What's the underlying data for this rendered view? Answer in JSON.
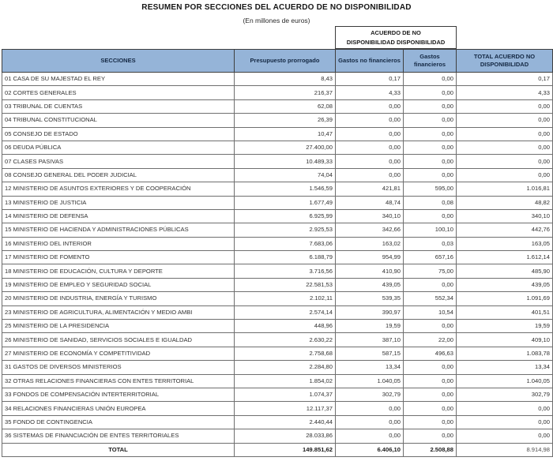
{
  "title": "RESUMEN POR SECCIONES DEL ACUERDO DE NO DISPONIBILIDAD",
  "subtitle": "(En millones de euros)",
  "group_header": {
    "line1": "ACUERDO DE NO",
    "line2": "DISPONIBILIDAD DISPONIBILIDAD"
  },
  "colors": {
    "header_bg": "#95b4d8",
    "header_text": "#142843",
    "grid_border": "#6f6f6f"
  },
  "chart_data": {
    "type": "table",
    "title": "RESUMEN POR SECCIONES DEL ACUERDO DE NO DISPONIBILIDAD",
    "units": "En millones de euros",
    "columns": [
      "SECCIONES",
      "Presupuesto prorrogado",
      "Gastos no financieros",
      "Gastos financieros",
      "TOTAL ACUERDO NO DISPONIBILIDAD"
    ],
    "rows": [
      [
        "01 CASA DE SU MAJESTAD EL REY",
        "8,43",
        "0,17",
        "0,00",
        "0,17"
      ],
      [
        "02 CORTES GENERALES",
        "216,37",
        "4,33",
        "0,00",
        "4,33"
      ],
      [
        "03 TRIBUNAL DE CUENTAS",
        "62,08",
        "0,00",
        "0,00",
        "0,00"
      ],
      [
        "04 TRIBUNAL CONSTITUCIONAL",
        "26,39",
        "0,00",
        "0,00",
        "0,00"
      ],
      [
        "05 CONSEJO DE ESTADO",
        "10,47",
        "0,00",
        "0,00",
        "0,00"
      ],
      [
        "06 DEUDA PÚBLICA",
        "27.400,00",
        "0,00",
        "0,00",
        "0,00"
      ],
      [
        "07 CLASES PASIVAS",
        "10.489,33",
        "0,00",
        "0,00",
        "0,00"
      ],
      [
        "08 CONSEJO GENERAL DEL PODER JUDICIAL",
        "74,04",
        "0,00",
        "0,00",
        "0,00"
      ],
      [
        "12 MINISTERIO DE ASUNTOS EXTERIORES Y DE COOPERACIÓN",
        "1.546,59",
        "421,81",
        "595,00",
        "1.016,81"
      ],
      [
        "13 MINISTERIO DE JUSTICIA",
        "1.677,49",
        "48,74",
        "0,08",
        "48,82"
      ],
      [
        "14 MINISTERIO DE DEFENSA",
        "6.925,99",
        "340,10",
        "0,00",
        "340,10"
      ],
      [
        "15 MINISTERIO DE HACIENDA Y ADMINISTRACIONES PÚBLICAS",
        "2.925,53",
        "342,66",
        "100,10",
        "442,76"
      ],
      [
        "16 MINISTERIO DEL INTERIOR",
        "7.683,06",
        "163,02",
        "0,03",
        "163,05"
      ],
      [
        "17 MINISTERIO DE FOMENTO",
        "6.188,79",
        "954,99",
        "657,16",
        "1.612,14"
      ],
      [
        "18 MINISTERIO DE EDUCACIÓN, CULTURA Y DEPORTE",
        "3.716,56",
        "410,90",
        "75,00",
        "485,90"
      ],
      [
        "19 MINISTERIO DE EMPLEO Y SEGURIDAD SOCIAL",
        "22.581,53",
        "439,05",
        "0,00",
        "439,05"
      ],
      [
        "20 MINISTERIO DE INDUSTRIA, ENERGÍA Y TURISMO",
        "2.102,11",
        "539,35",
        "552,34",
        "1.091,69"
      ],
      [
        "23 MINISTERIO DE AGRICULTURA, ALIMENTACIÓN Y MEDIO AMBI",
        "2.574,14",
        "390,97",
        "10,54",
        "401,51"
      ],
      [
        "25 MINISTERIO DE LA PRESIDENCIA",
        "448,96",
        "19,59",
        "0,00",
        "19,59"
      ],
      [
        "26 MINISTERIO DE SANIDAD, SERVICIOS SOCIALES E IGUALDAD",
        "2.630,22",
        "387,10",
        "22,00",
        "409,10"
      ],
      [
        "27 MINISTERIO DE ECONOMÍA Y COMPETITIVIDAD",
        "2.758,68",
        "587,15",
        "496,63",
        "1.083,78"
      ],
      [
        "31 GASTOS DE DIVERSOS MINISTERIOS",
        "2.284,80",
        "13,34",
        "0,00",
        "13,34"
      ],
      [
        "32 OTRAS RELACIONES FINANCIERAS CON ENTES TERRITORIAL",
        "1.854,02",
        "1.040,05",
        "0,00",
        "1.040,05"
      ],
      [
        "33 FONDOS DE COMPENSACIÓN INTERTERRITORIAL",
        "1.074,37",
        "302,79",
        "0,00",
        "302,79"
      ],
      [
        "34 RELACIONES FINANCIERAS UNIÓN EUROPEA",
        "12.117,37",
        "0,00",
        "0,00",
        "0,00"
      ],
      [
        "35 FONDO DE CONTINGENCIA",
        "2.440,44",
        "0,00",
        "0,00",
        "0,00"
      ],
      [
        "36 SISTEMAS DE FINANCIACIÓN DE ENTES TERRITORIALES",
        "28.033,86",
        "0,00",
        "0,00",
        "0,00"
      ]
    ],
    "total_row": [
      "TOTAL",
      "149.851,62",
      "6.406,10",
      "2.508,88",
      "8.914,98"
    ]
  }
}
